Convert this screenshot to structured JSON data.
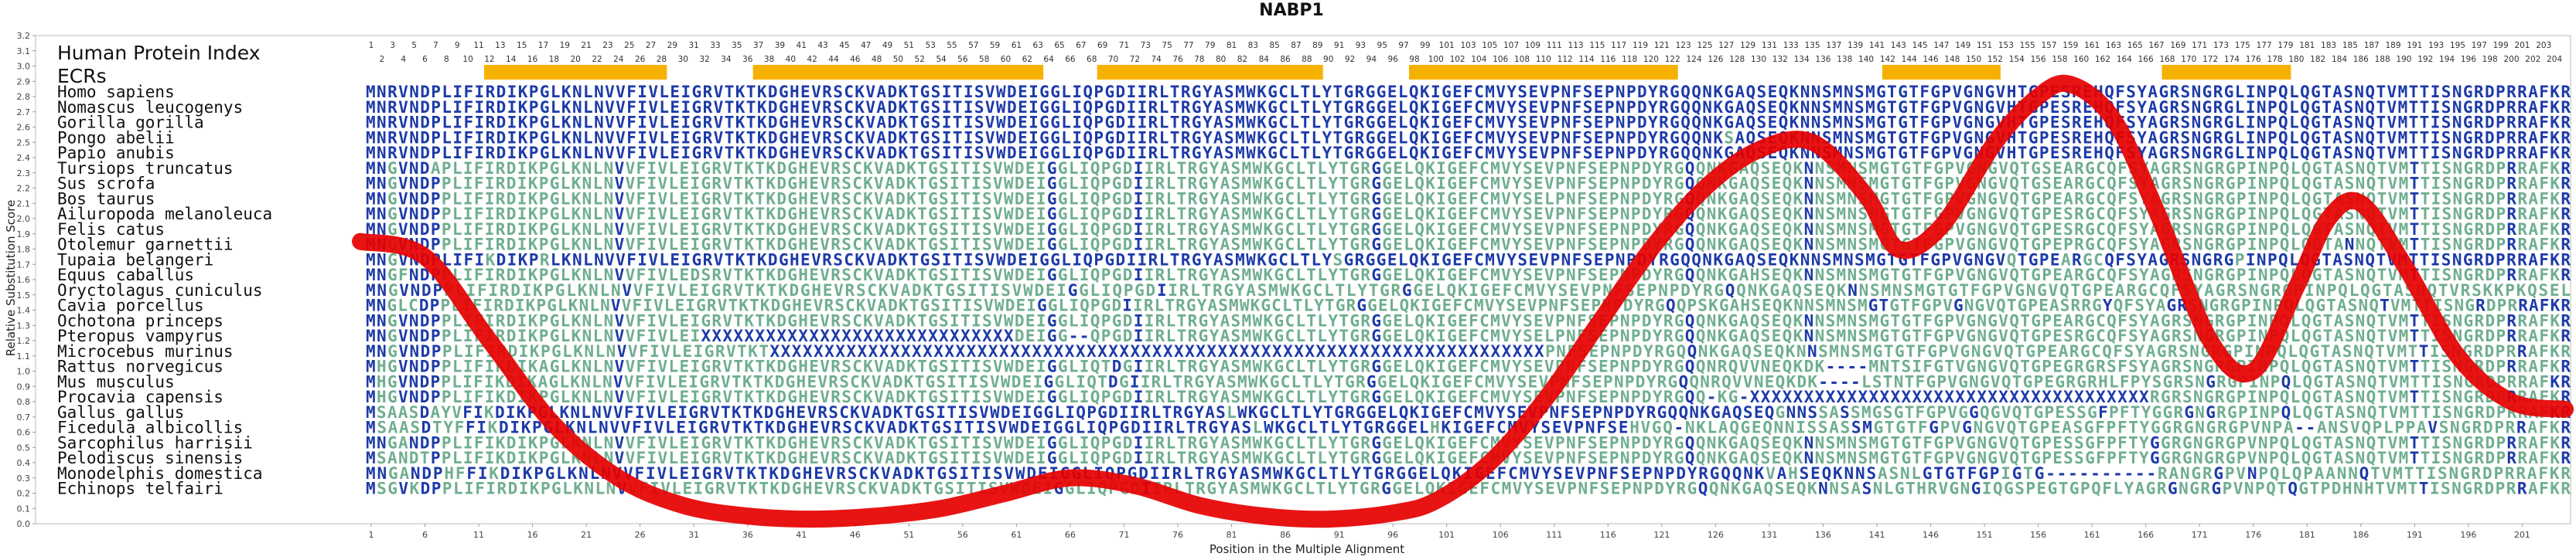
{
  "chart_data": {
    "type": "line",
    "title": "NABP1",
    "xlabel": "Position in the Multiple Alignment",
    "ylabel": "Relative Substitution Score",
    "xlim": [
      1,
      205
    ],
    "ylim": [
      0.0,
      3.2
    ],
    "y_ticks": [
      "0.0",
      "0.1",
      "0.2",
      "0.3",
      "0.4",
      "0.5",
      "0.6",
      "0.7",
      "0.8",
      "0.9",
      "1.0",
      "1.1",
      "1.2",
      "1.3",
      "1.4",
      "1.5",
      "1.6",
      "1.7",
      "1.8",
      "1.9",
      "2.0",
      "2.1",
      "2.2",
      "2.3",
      "2.4",
      "2.5",
      "2.6",
      "2.7",
      "2.8",
      "2.9",
      "3.0",
      "3.1",
      "3.2"
    ],
    "x_ticks": [
      1,
      6,
      11,
      16,
      21,
      26,
      31,
      36,
      41,
      46,
      51,
      56,
      61,
      66,
      71,
      76,
      81,
      86,
      91,
      96,
      101,
      106,
      111,
      116,
      121,
      126,
      131,
      136,
      141,
      146,
      151,
      156,
      161,
      166,
      171,
      176,
      181,
      186,
      191,
      196,
      201
    ],
    "header_label": "Human Protein Index",
    "ecr_label": "ECRs",
    "ecr_color": "#f6b100",
    "curve_color": "#e60000",
    "ecr_regions": [
      [
        12,
        28
      ],
      [
        37,
        63
      ],
      [
        69,
        89
      ],
      [
        98,
        122
      ],
      [
        142,
        152
      ],
      [
        168,
        179
      ]
    ],
    "human_index_row1": [
      1,
      3,
      5,
      7,
      9,
      11,
      13,
      15,
      17,
      19,
      21,
      23,
      25,
      27,
      29,
      31,
      33,
      35,
      37,
      39,
      41,
      43,
      45,
      47,
      49,
      51,
      53,
      55,
      57,
      59,
      61,
      63,
      65,
      67,
      69,
      71,
      73,
      75,
      77,
      79,
      81,
      83,
      85,
      87,
      89,
      91,
      93,
      95,
      97,
      99,
      101,
      103,
      105,
      107,
      109,
      111,
      113,
      115,
      117,
      119,
      121,
      123,
      125,
      127,
      129,
      131,
      133,
      135,
      137,
      139,
      141,
      143,
      145,
      147,
      149,
      151,
      153,
      155,
      157,
      159,
      161,
      163,
      165,
      167,
      169,
      171,
      173,
      175,
      177,
      179,
      181,
      183,
      185,
      187,
      189,
      191,
      193,
      195,
      197,
      199,
      201,
      203
    ],
    "human_index_row2": [
      2,
      4,
      6,
      8,
      10,
      12,
      14,
      16,
      18,
      20,
      22,
      24,
      26,
      28,
      30,
      32,
      34,
      36,
      38,
      40,
      42,
      44,
      46,
      48,
      50,
      52,
      54,
      56,
      58,
      60,
      62,
      64,
      66,
      68,
      70,
      72,
      74,
      76,
      78,
      80,
      82,
      84,
      86,
      88,
      90,
      92,
      94,
      96,
      98,
      100,
      102,
      104,
      106,
      108,
      110,
      112,
      114,
      116,
      118,
      120,
      122,
      124,
      126,
      128,
      130,
      132,
      134,
      136,
      138,
      140,
      142,
      144,
      146,
      148,
      150,
      152,
      154,
      156,
      158,
      160,
      162,
      164,
      166,
      168,
      170,
      172,
      174,
      176,
      178,
      180,
      182,
      184,
      186,
      188,
      190,
      192,
      194,
      196,
      198,
      200,
      202,
      204
    ],
    "species": [
      "Homo sapiens",
      "Nomascus leucogenys",
      "Gorilla gorilla",
      "Pongo abelii",
      "Papio anubis",
      "Tursiops truncatus",
      "Sus scrofa",
      "Bos taurus",
      "Ailuropoda melanoleuca",
      "Felis catus",
      "Otolemur garnettii",
      "Tupaia belangeri",
      "Equus caballus",
      "Oryctolagus cuniculus",
      "Cavia porcellus",
      "Ochotona princeps",
      "Pteropus vampyrus",
      "Microcebus murinus",
      "Rattus norvegicus",
      "Mus musculus",
      "Procavia capensis",
      "Gallus gallus",
      "Ficedula albicollis",
      "Sarcophilus harrisii",
      "Pelodiscus sinensis",
      "Monodelphis domestica",
      "Echinops telfairi"
    ],
    "sequences": [
      "MNRVNDPLIFIRDIKPGLKNLNVVFIVLEIGRVTKTKDGHEVRSCKVADKTGSITISVWDEIGGLIQPGDIIRLTRGYASMWKGCLTLYTGRGGELQKIGEFCMVYSEVPNFSEPNPDYRGQQNKGAQSEQKNNSMNSMGTGTFGPVGNGVHTGPESREHQFSYAGRSNGRGLINPQLQGTASNQTVMTTISNGRDPRRAFKR",
      "MNRVNDPLIFIRDIKPGLKNLNVVFIVLEIGRVTKTKDGHEVRSCKVADKTGSITISVWDEIGGLIQPGDIIRLTRGYASMWKGCLTLYTGRGGELQKIGEFCMVYSEVPNFSEPNPDYRGQQNKGAQSEQKNNSMNSMGTGTFGPVGNGVHTGPESREHQFSYAGRSNGRGLINPQLQGTASNQTVMTTISNGRDPRRAFKR",
      "MNRVNDPLIFIRDIKPGLKNLNVVFIVLEIGRVTKTKDGHEVRSCKVADKTGSITISVWDEIGGLIQPGDIIRLTRGYASMWKGCLTLYTGRGGELQKIGEFCMVYSEVPNFSEPNPDYRGQQNKGAQSEQKNNSMNSMGTGTFGPVGNGVHTGPESREHQFSYAGRSNGRGLINPQLQGTASNQTVMTTISNGRDPRRAFKR",
      "MNRVNDPLIFIRDIKPGLKNLNVVFIVLEIGRVTKTKDGHEVRSCKVADKTGSITISVWDEIGGLIQPGDIIRLTRGYASMWKGCLTLYTGRGGELQKIGEFCMVYSEVPNFSEPNPDYRGQQNKSAQSEQKNNSMNSMGTGTFGPVGNGVHTGPESREHQFSYAGRSNGRGLINPQLQGTASNQTVMTTISNGRDPRRAFKR",
      "MNRVNDPLIFIRDIKPGLKNLNVVFIVLEIGRVTKTKDGHEVRSCKVADKTGSITISVWDEIGGLIQPGDIIRLTRGYASMWKGCLTLYTGRGGELQKIGEFCMVYSEVPNFSEPNPDYRGQQNKGAQSEQKNNSMNSMGTGTFGPVGNGVHTGPESREHQFSYAGRSNGRGLINPQLQGTASNQTVMTTISNGRDPRRAFKR",
      "MNGVNDAPLIFIRDIKPGLKNLNVVFIVLEIGRVTKTKDGHEVRSCKVADKTGSITISVWDEIGGLIQPGDIIRLTRGYASMWKGCLTLYTGRGGELQKIGEFCMVYSEVPNFSEPNPDYRGQQNKGAQSEQKNNSMNSMGTGTFGPVGNGVQTGSEARGCQFSYAGRSNGRGPINPQLQGTASNQTVMTTISNGRDPRRAFKR",
      "MNGVNDPPLIFIRDIKPGLKNLNVVFIVLEIGRVTKTKDGHEVRSCKVADKTGSITISVWDEIGGLIQPGDIIRLTRGYASMWKGCLTLYTGRGGELQKIGEFCMVYSEVPNFSEPNPDYRGQQNKGAQSEQKNNSMNSMGTGTFGPVGNGVQTGSEARGCQFSYAGRSNGRGPINPQLQGTASNQTVMTTISNGRDPRRAFKR",
      "MNGVNDPPLIFIRDIKPGLKNLNVVFIVLEIGRVTKTKDGHEVRSCKVADKTGSITISVWDEIGGLIQPGDIIRLTRGYASMWKGCLTLYTGRGGELQKIGEFCMVYSELPNFSEPNPDYRGQQNKGAQSEQKNNSMNSMGTGTFGPVGNGVQTGPEARGCQFSYAGRSNGRGPINPQLQGTASNQTVMTTISNGRDPRRAFKR",
      "MNGVNDPPLIFIRDIKPGLKNLNVVFIVLEIGRVTKTKDGHEVRSCKVADKTGSITISVWDEIGGLIQPGDIIRLTRGYASMWKGCLTLYTGRGGELQKIGEFCMVYSEVPNFSEPNPDYRGQQNKGAQSEQKNNSMNSMGTGTFGPVGNGVQTGPESRGCQFSYAGRSNGRGPINPQLQGTASNQTVMTTISNGRDPRRAFKR",
      "MNGVNDPPLIFIRDIKPGLKNLNVVFIVLEIGRVTKTKDGHEVRSCKVADKTGSITISVWDEIGGLIQPGDIIRLTRGYASMWKGCLTLYTGRGGELQKIGEFCMVYSEVPNFSEPNPDYRGQQNKGAQSEQKNNSMNSMGTGTFGPVGNGVQTGPESRGCQFSYAGRSNGRGPINPQLQGTASNQTVMTTISNGRDPRRAFKR",
      "MNGVNDPPLIFIRDIKPGLKNLNVVFIVLEIGRVTKTKDGHEVRSCKVADKTGSITISVWDEIGGLIQPGDIIRLTRGYASMWKGCLTLYTGRGGELQKIGEFCMVYSEVPNFSEPNPDYRGQQNKGAQSEQKNNSMNSMGTGTFGPVGNGVQTGPEPRGCQFSYAGRSNGRGPINPQLQGTANNQTVMTTISNGRDPRRAFKR",
      "MNGVNDPLIFIKDIKPRLKNLNVVFIVLEIGRVTKTKDGHEVRSCKVADKTGSITISVWDEIGGLIQPGDIIRLTRGYASMWKGCLTLYSGRGGELQKIGEFCMVYSEVPNFSEPNPDYRGQQNKGAQSEQKNNSMNSMGTGTFGPVGNGVQTGPEARGCQFSYAGRSNGRGPINPQLQGTASNQTVMTTISNGRDPRRAFKR",
      "MNGFNDPPLIFIRDIKPGLKNLNVVFIVLEDSRVTKTKDGHEVRSCKVADKTGSITISVWDEIGGLIQPGDIIRLTRGYASMWKGCLTLYTGRGGELQKIGEFCMVYSEVPNFSEPNPDYRGQQNKGAHSEQKNNSMNSMGTGTFGPVGNGVQTGPEARGCQFSYAGRSNGRGPINPQLQGTASNQTVMTTISNGRDPRRAFKR",
      "MNGVNDPPLIFIRDIKPGLKNLNVVFIVLEIGRVTKTKDGHEVRSCKVADKTGSITISVWDEIGGLIQPGDIIRLTRGYASMWKGCLTLYTGRGGELQKIGEFCMVYSEVPNFSEPNPDYRGQQNKGAQSEQKNNSMNSMGTGTFGPVGNGVQTGPEARGCQFSYAGRSNGRGPINPQLQGTASNQTVRSKKPKQSEL",
      "MNGLCDPPLIFIRDIKPGLKNLNVVFIVLEIGRVTKTKDGHEVRSCKVADKTGSITISVWDEIGGLIQPGDIIRLTRGYASMWKGCLTLYTGRGGELQKIGEFCMVYSEVPNFSEPNPDYRGQQPSKGAHSEQKNNSMNSMGTGTFGPVGNGVQTGPEASRRGYQFSYAGRSNGRGPINPQLQGTASNQTVMTTISNGRDPRRAFKR",
      "MNGVNDPPLIFIRDIKPGLKNLNVVFIVLEIGRVTKTKDGHEVRSCKVADKTGSITISVWDEIGGLIQPGDIIRLTRGYASMWKGCLTLYTGRGGELQKIGEFCMVYSEVPNFSEPNPDYRGQQNKGAQSEQKNNSMNSMGTGTFGPVGNGVQTGPEARGCQFSYAGRSNGRGPINPQLQGTASNQTVMTTISNGRDPRRAFKR",
      "MNGVNDPPLIFIRDIKPGLKNLNVVFIVLEIXXXXXXXXXXXXXXXXXXXXXXXXXXXXXDEIGG--QPGDIIRLTRGYASMWKGCLTLYTGRGGELQKIGEFCMVYSELPNFSEPNPDYRGQQNKGAQSEQKNNSMNSMGTGTFGPVGNGVQTGPESRGCQFSYAGRSNGRGPINPQLQGTASNQTVMTTISNGRDPRRAFKR",
      "MNGVNDPPLIFIRDIKPGLKNLNVVFIVLEIGRVTKTXXXXXXXXXXXXXXXXXXXXXXXXXXXXXXXXXXXXXXXXXXXXXXXXXXXXXXXXXXXXXXXXXXXXXXXPNFSEPNPDYRGQQNKGAQSEQKNNSMNSMGTGTFGPVGNGVQTGPEARGCQFSYAGRSNGRGPINPQLQGTASNQTVMTTISNGRDPRRAFKR",
      "MHGVNDPPLIFIKDIKAGLKNLNVVFIVLEIGRVTKTKDGHEVRSCKVADKTGSITISVWDEIGGLIQTDGIIRLTRGYASMWKGCLTLYTGRGGELQKIGEFCMVYSEVPNFSEPNPDYRGQQNRQVVNEQKDK----MNTSIFGTVGNGVQTGPEGRGRSFSYAGRSNGRGPINPQLQGTASNQTVMTTISNGRDPRRAFKR",
      "MHGVNDPPLIFIKDIKAGLKNLNVVFIVLEIGRVTKTKDGHEVRSCKVADKTGSITISVWDEIGGLIQTDGIIRLTRGYASMWKGCLTLYTGRGGELQKIGEFCMVYSEVPNFSEPNPDYRGQQNRQVVNEQKDK----LSTNTFGPVGNGVQTGPEGRGRHLFPYSGRSNGRGPINPQLQGTASNQTVMTTISNGRDPRRAFKR",
      "MHGVNDPPLIFIKDIKPGLKNLNVVFIVLEIGRVTKTKDGHEVRSCKVADKTGSITISVWDEIGGLIQPGDIIRLTRGYASMWKGCLTLYTGRGGELQKIGEFCMVYSEVPNFSEPNPDYRGQQ-KG-XXXXXXXXXXXXXXXXXXXXXXXXXXXXXXXXXXXXXRGRSNGRGPINPQLQGTASNQTVMTTISNGRDPRRAFKR",
      "MSAASDAYVFIKDIKPGLKNLNVVFIVLEIGRVTKTKDGHEVRSCKVADKTGSITISVWDEIGGLIQPGDIIRLTRGYASLWKGCLTLYTGRGGELQKIGEFCMVYSEVPNFSEPNPDYRGQQNKGAQSEQGNNSSASSMGSGTFGPVGGQGVQTGPESSGFPFTYGGRGNGRGPINPQLQGTASNQTVMTTISNGRDPRRAFKR",
      "MSAASDTYFFIKDIKPGLKNLNVVFIVLEIGRVTKTKDGHEVRSCKVADKTGSITISVWDEIGGLIQPGDIIRLTRGYASLWKGCLTLYTGRGGELHKIGEFCMVYSEVPNFSEHVGQ-NKLAQGEQNNISSASSMGTGTFGPVGNGVQTGPEASGFPFTYGGRGNGRGPVNPA--ANSVQPLPPAVSNGRDPRRAFKR",
      "MNGANDPPLIFIKDIKPGLKNLNVVFIVLEIGRVTKTKDGHEVRSCKVADKTGSITISVWDEIGGLIQPGDIIRLTRGYASMWKGCLTLYTGRGGELQKIGEFCMVYSEVPNFSEPNPDYRGQQNKGAQSEQKNNSMNSMGTGTFGPVGNGVQTGPESSGFPFTYGGRGNGRGPVNPQLQGTASNQTVMTTISNGRDPRRAFKR",
      "MSANDTPPLIFIKDIKPGLKNLNVVFIVLEIGRVTKTKDGHEVRSCKVADKTGSITISVWDEIGGLIQPGDIIRLTRGYASMWKGCLTLYTGRGGELQKIGEFCMVYSEVPNFSEPNPDYRGQQNKGAQSEQKNNSMNSMGTGTFGPVGNGVQTGPESSGFPFTYGGRGNGRGPVNPQLQGTASNQTVMTTISNGRDPRRAFKR",
      "MNGANDPHFFIKDIKPGLKNLNVVFIVLEIGRVTKTKDGHEVRSCKVADKTGSITISVWDEIGGLIQPGDIIRLTRGYASMWKGCLTLYTGRGGELQKIGEFCMVYSEVPNFSEPNPDYRGQQNKVAHSEQKNNSASNLGTGTFGPIGTG----------RANGRGPVNPQLQPAANNQTVMTTISNGRDPRRAFKR",
      "MSGVKDPPLIFIRDIKPGLKNLNVVFIVLEIGRVTKTKDGHEVRSCKVADKTGSITISVWDEIGGLIQPGDIIRLTRGYASMWKGCLTLYTGRGGELQKIGEFCMVYSEVPNFSEPNPDYRGQQNKGAQSEQKNNSASNLGTHRVGNGIQGSPEGTGPQFLYAGRGNGRGPVNPQTQGTPDHNHTVMTTISNGRDPRRAFKR"
    ],
    "curve": {
      "x": [
        0,
        6,
        12,
        18,
        24,
        30,
        36,
        42,
        48,
        54,
        60,
        66,
        72,
        78,
        84,
        90,
        96,
        100,
        105,
        110,
        115,
        120,
        125,
        130,
        135,
        140,
        143,
        147,
        152,
        156,
        159,
        163,
        167,
        172,
        176,
        180,
        183,
        186,
        190,
        195,
        200,
        205
      ],
      "y": [
        1.85,
        1.75,
        1.2,
        0.65,
        0.3,
        0.12,
        0.05,
        0.03,
        0.05,
        0.1,
        0.2,
        0.3,
        0.25,
        0.12,
        0.05,
        0.03,
        0.07,
        0.15,
        0.4,
        0.8,
        1.3,
        1.8,
        2.2,
        2.45,
        2.5,
        2.15,
        1.8,
        1.95,
        2.5,
        2.8,
        2.88,
        2.65,
        2.05,
        1.2,
        1.0,
        1.55,
        2.0,
        2.1,
        1.7,
        1.1,
        0.8,
        0.75
      ]
    }
  }
}
